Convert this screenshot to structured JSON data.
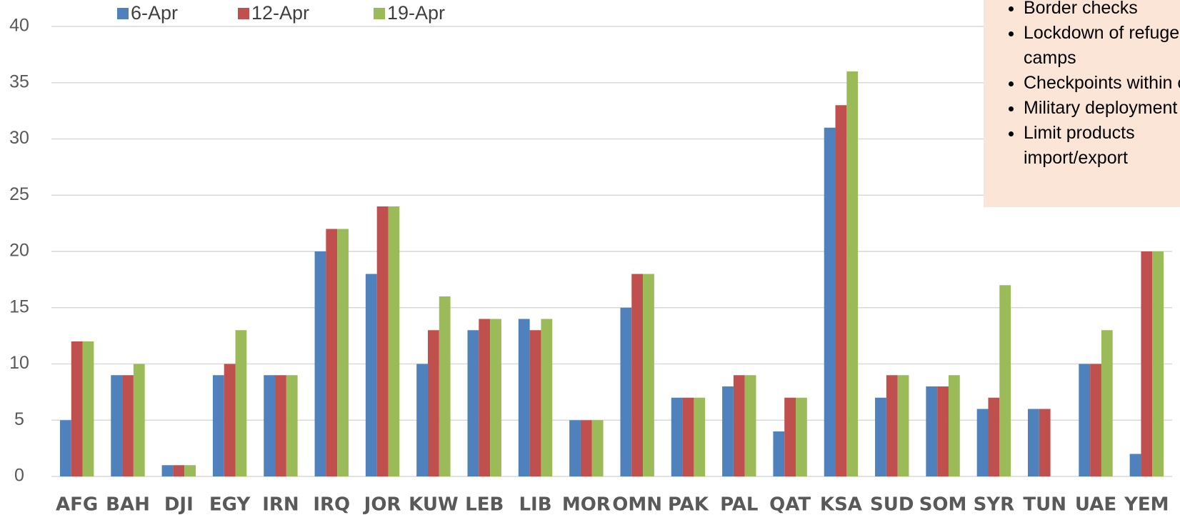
{
  "chart_data": {
    "type": "bar",
    "categories": [
      "AFG",
      "BAH",
      "DJI",
      "EGY",
      "IRN",
      "IRQ",
      "JOR",
      "KUW",
      "LEB",
      "LIB",
      "MOR",
      "OMN",
      "PAK",
      "PAL",
      "QAT",
      "KSA",
      "SUD",
      "SOM",
      "SYR",
      "TUN",
      "UAE",
      "YEM"
    ],
    "series": [
      {
        "name": "6-Apr",
        "color": "#4f81bd",
        "values": [
          5,
          9,
          1,
          9,
          9,
          20,
          18,
          10,
          13,
          14,
          5,
          15,
          7,
          8,
          4,
          31,
          7,
          8,
          6,
          6,
          10,
          2
        ]
      },
      {
        "name": "12-Apr",
        "color": "#c0504d",
        "values": [
          12,
          9,
          1,
          10,
          9,
          22,
          24,
          13,
          14,
          13,
          5,
          18,
          7,
          9,
          7,
          33,
          9,
          8,
          7,
          6,
          10,
          20
        ]
      },
      {
        "name": "19-Apr",
        "color": "#9bbb59",
        "values": [
          12,
          10,
          1,
          13,
          9,
          22,
          24,
          16,
          14,
          14,
          5,
          18,
          7,
          9,
          7,
          36,
          9,
          9,
          17,
          null,
          13,
          20
        ]
      }
    ],
    "ylim": [
      0,
      40
    ],
    "yticks": [
      0,
      5,
      10,
      15,
      20,
      25,
      30,
      35,
      40
    ],
    "grid": true,
    "legend": "top-left"
  },
  "note": {
    "items": [
      "Border checks",
      "Lockdown of refugee camps",
      "Checkpoints within country",
      "Military deployment",
      "Limit products import/export"
    ]
  }
}
